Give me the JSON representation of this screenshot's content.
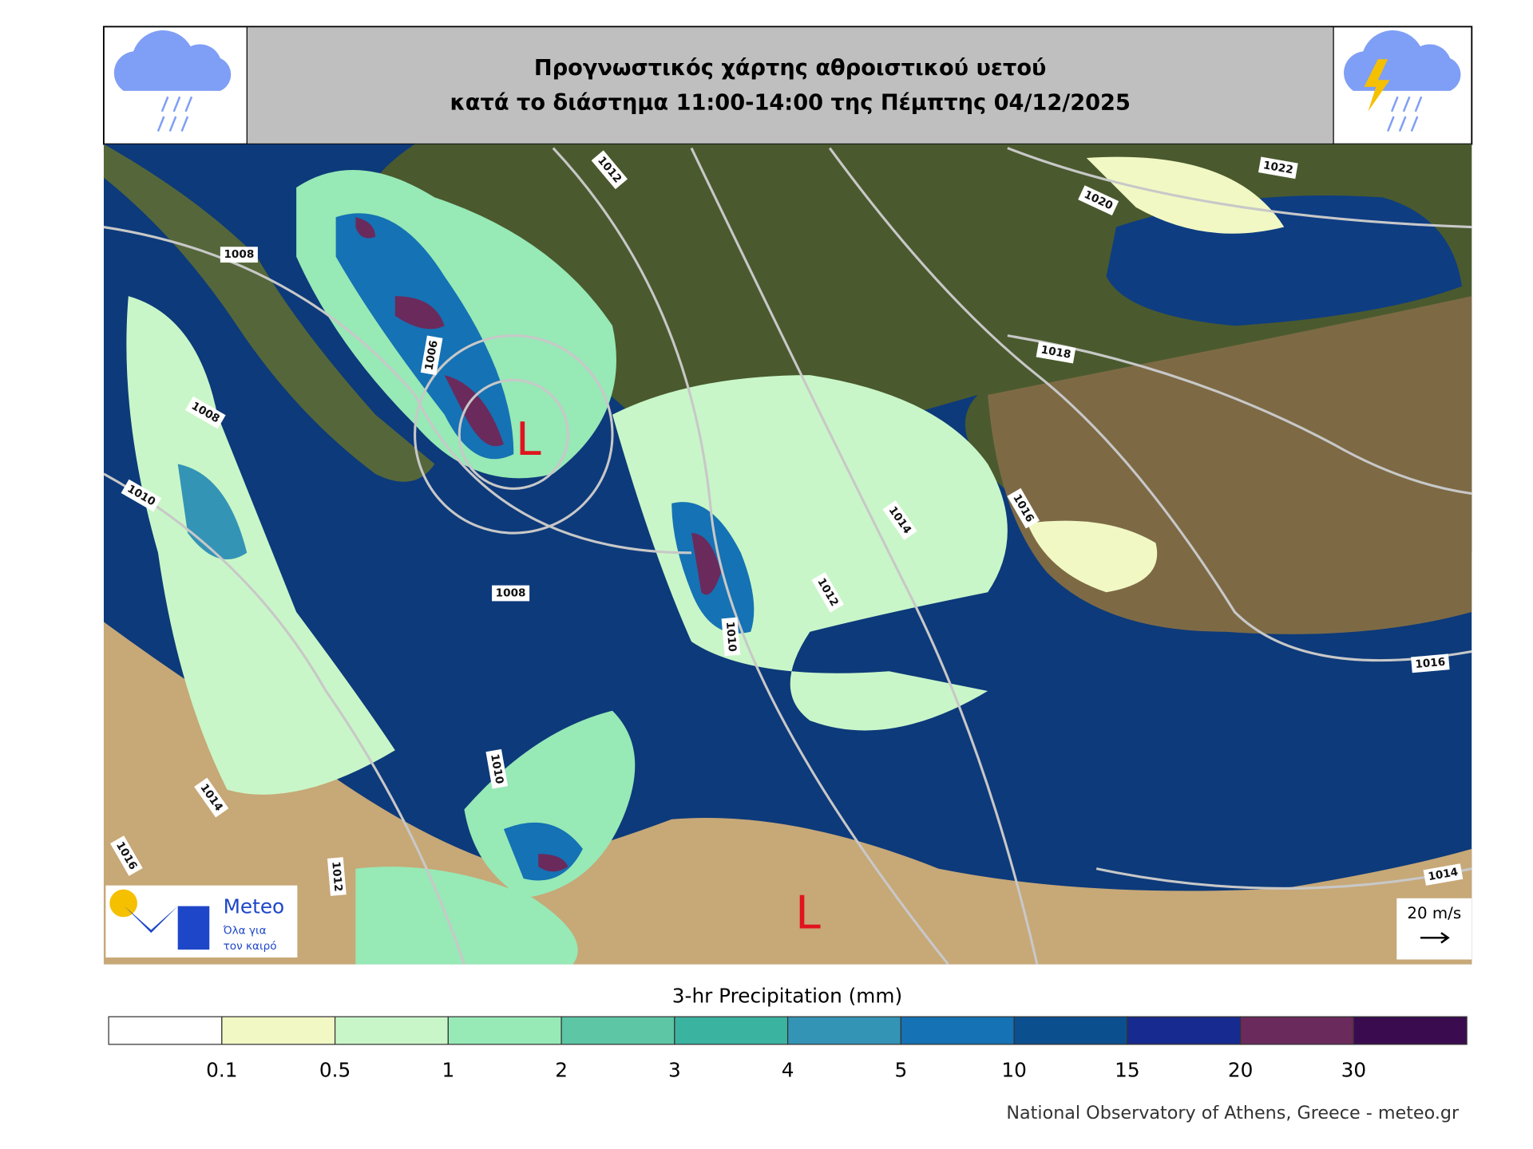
{
  "header": {
    "title_line1": "Προγνωστικός χάρτης αθροιστικού υετού",
    "title_line2": "κατά το διάστημα 11:00-14:00 της Πέμπτης 04/12/2025"
  },
  "map": {
    "isobar_labels": [
      "1012",
      "1022",
      "1020",
      "1008",
      "1006",
      "1018",
      "1008",
      "1010",
      "1014",
      "1016",
      "1008",
      "1012",
      "1010",
      "1016",
      "1010",
      "1014",
      "1016",
      "1012",
      "1014"
    ],
    "lows": [
      "L",
      "L"
    ],
    "wind_scale": "20 m/s"
  },
  "logo": {
    "name": "Meteo",
    "slogan1": "Όλα για",
    "slogan2": "τον καιρό"
  },
  "legend": {
    "title": "3-hr Precipitation (mm)",
    "labels": [
      "0.1",
      "0.5",
      "1",
      "2",
      "3",
      "4",
      "5",
      "10",
      "15",
      "20",
      "30"
    ],
    "colors": [
      "#ffffff",
      "#f1f8c4",
      "#c9f6c8",
      "#97e9b6",
      "#5cc6a5",
      "#3bb3a1",
      "#3494b6",
      "#1572b4",
      "#0b4f8f",
      "#172a8f",
      "#6b2a5c",
      "#3a0c4f"
    ]
  },
  "footer": {
    "credit": "National Observatory of Athens, Greece - meteo.gr"
  }
}
